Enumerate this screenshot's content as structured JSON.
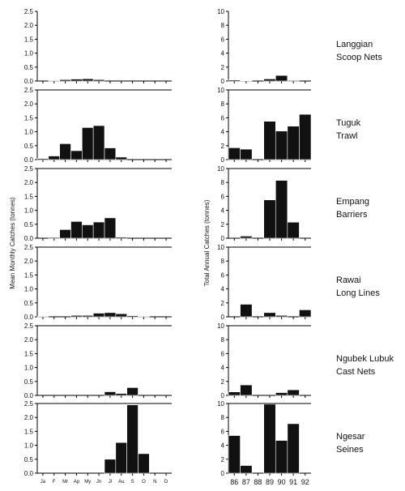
{
  "chart_data": {
    "type": "bar",
    "left_ylabel": "Mean Monthly Catches (tonnes)",
    "right_ylabel": "Total Annual Catches (tonnes)",
    "months": [
      "Ja",
      "F",
      "Mr",
      "Ap",
      "My",
      "Jn",
      "Jl",
      "Au",
      "S",
      "O",
      "N",
      "D"
    ],
    "years": [
      "86",
      "87",
      "88",
      "89",
      "90",
      "91",
      "92"
    ],
    "monthly_yticks": [
      "0.0",
      "0.5",
      "1.0",
      "1.5",
      "2.0",
      "2.5"
    ],
    "annual_yticks": [
      "0",
      "2",
      "4",
      "6",
      "8",
      "10"
    ],
    "monthly_ylim": [
      0,
      2.5
    ],
    "annual_ylim": [
      0,
      10
    ],
    "panels": [
      {
        "gear_line1": "Langgian",
        "gear_line2": "Scoop Nets",
        "monthly": [
          0.0,
          0.02,
          0.05,
          0.07,
          0.08,
          0.05,
          0.0,
          0.0,
          0.0,
          0.0,
          0.0,
          0.0
        ],
        "annual": [
          0.15,
          0.05,
          0.0,
          0.3,
          0.8,
          0.1,
          0.0
        ]
      },
      {
        "gear_line1": "Tuguk",
        "gear_line2": "Trawl",
        "monthly": [
          0.04,
          0.13,
          0.57,
          0.32,
          1.15,
          1.22,
          0.42,
          0.09,
          0.0,
          0.0,
          0.0,
          0.0
        ],
        "annual": [
          1.7,
          1.5,
          0.0,
          5.5,
          4.1,
          4.8,
          6.5
        ]
      },
      {
        "gear_line1": "Empang",
        "gear_line2": "Barriers",
        "monthly": [
          0.0,
          0.03,
          0.31,
          0.6,
          0.48,
          0.58,
          0.73,
          0.04,
          0.0,
          0.0,
          0.0,
          0.0
        ],
        "annual": [
          0.0,
          0.3,
          0.0,
          5.5,
          8.3,
          2.3,
          0.0
        ]
      },
      {
        "gear_line1": "Rawai",
        "gear_line2": "Long Lines",
        "monthly": [
          0.02,
          0.0,
          0.0,
          0.05,
          0.05,
          0.13,
          0.15,
          0.11,
          0.04,
          0.02,
          0.0,
          0.0
        ],
        "annual": [
          0.0,
          1.8,
          0.0,
          0.6,
          0.2,
          0.0,
          1.0
        ]
      },
      {
        "gear_line1": "Ngubek Lubuk",
        "gear_line2": "Cast Nets",
        "monthly": [
          0.0,
          0.0,
          0.0,
          0.0,
          0.0,
          0.0,
          0.13,
          0.07,
          0.28,
          0.0,
          0.0,
          0.0
        ],
        "annual": [
          0.5,
          1.5,
          0.0,
          0.0,
          0.4,
          0.8,
          0.0
        ]
      },
      {
        "gear_line1": "Ngesar",
        "gear_line2": "Seines",
        "monthly": [
          0.0,
          0.0,
          0.0,
          0.0,
          0.0,
          0.0,
          0.5,
          1.1,
          2.45,
          0.7,
          0.0,
          0.0
        ],
        "annual": [
          5.4,
          1.1,
          0.0,
          9.9,
          4.7,
          7.1,
          0.0
        ]
      }
    ]
  }
}
